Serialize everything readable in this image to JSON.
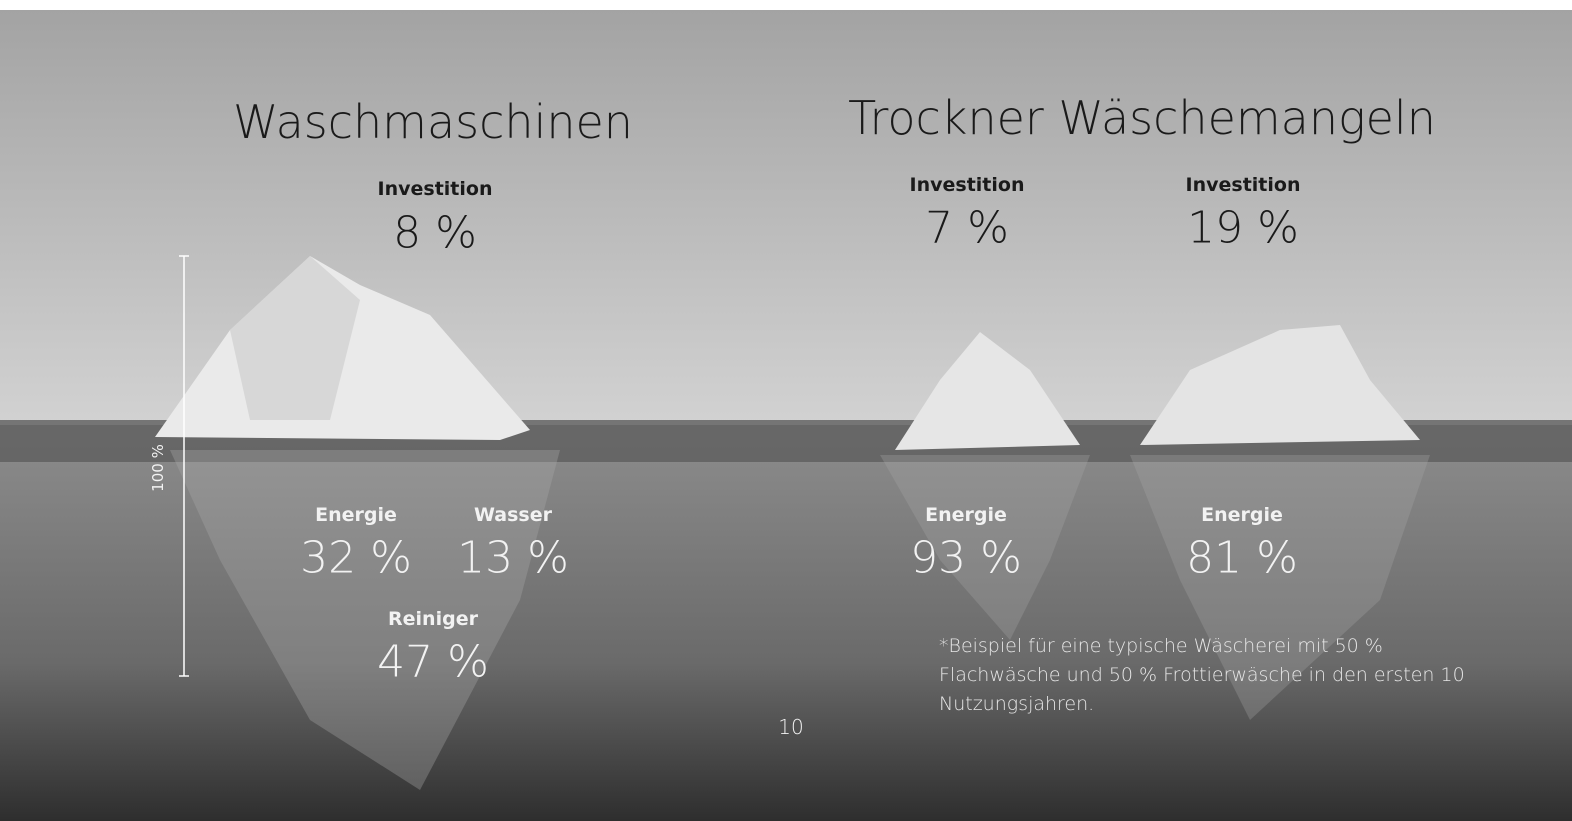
{
  "slide": {
    "groups": [
      {
        "title": "Waschmaschinen",
        "items": [
          {
            "label": "Investition",
            "value": "8 %"
          },
          {
            "label": "Energie",
            "value": "32 %"
          },
          {
            "label": "Wasser",
            "value": "13 %"
          },
          {
            "label": "Reiniger",
            "value": "47 %"
          }
        ],
        "scale_label": "100 %"
      },
      {
        "title": "Trockner Wäschemangeln",
        "items": [
          {
            "label": "Investition",
            "value": "7 %"
          },
          {
            "label": "Investition",
            "value": "19 %"
          },
          {
            "label": "Energie",
            "value": "93 %"
          },
          {
            "label": "Energie",
            "value": "81 %"
          }
        ]
      }
    ],
    "footnote": "*Beispiel für eine typische Wäscherei mit 50 % Flachwäsche und 50 % Frottierwäsche in den ersten 10 Nutzungsjahren.",
    "page_number": "10"
  }
}
